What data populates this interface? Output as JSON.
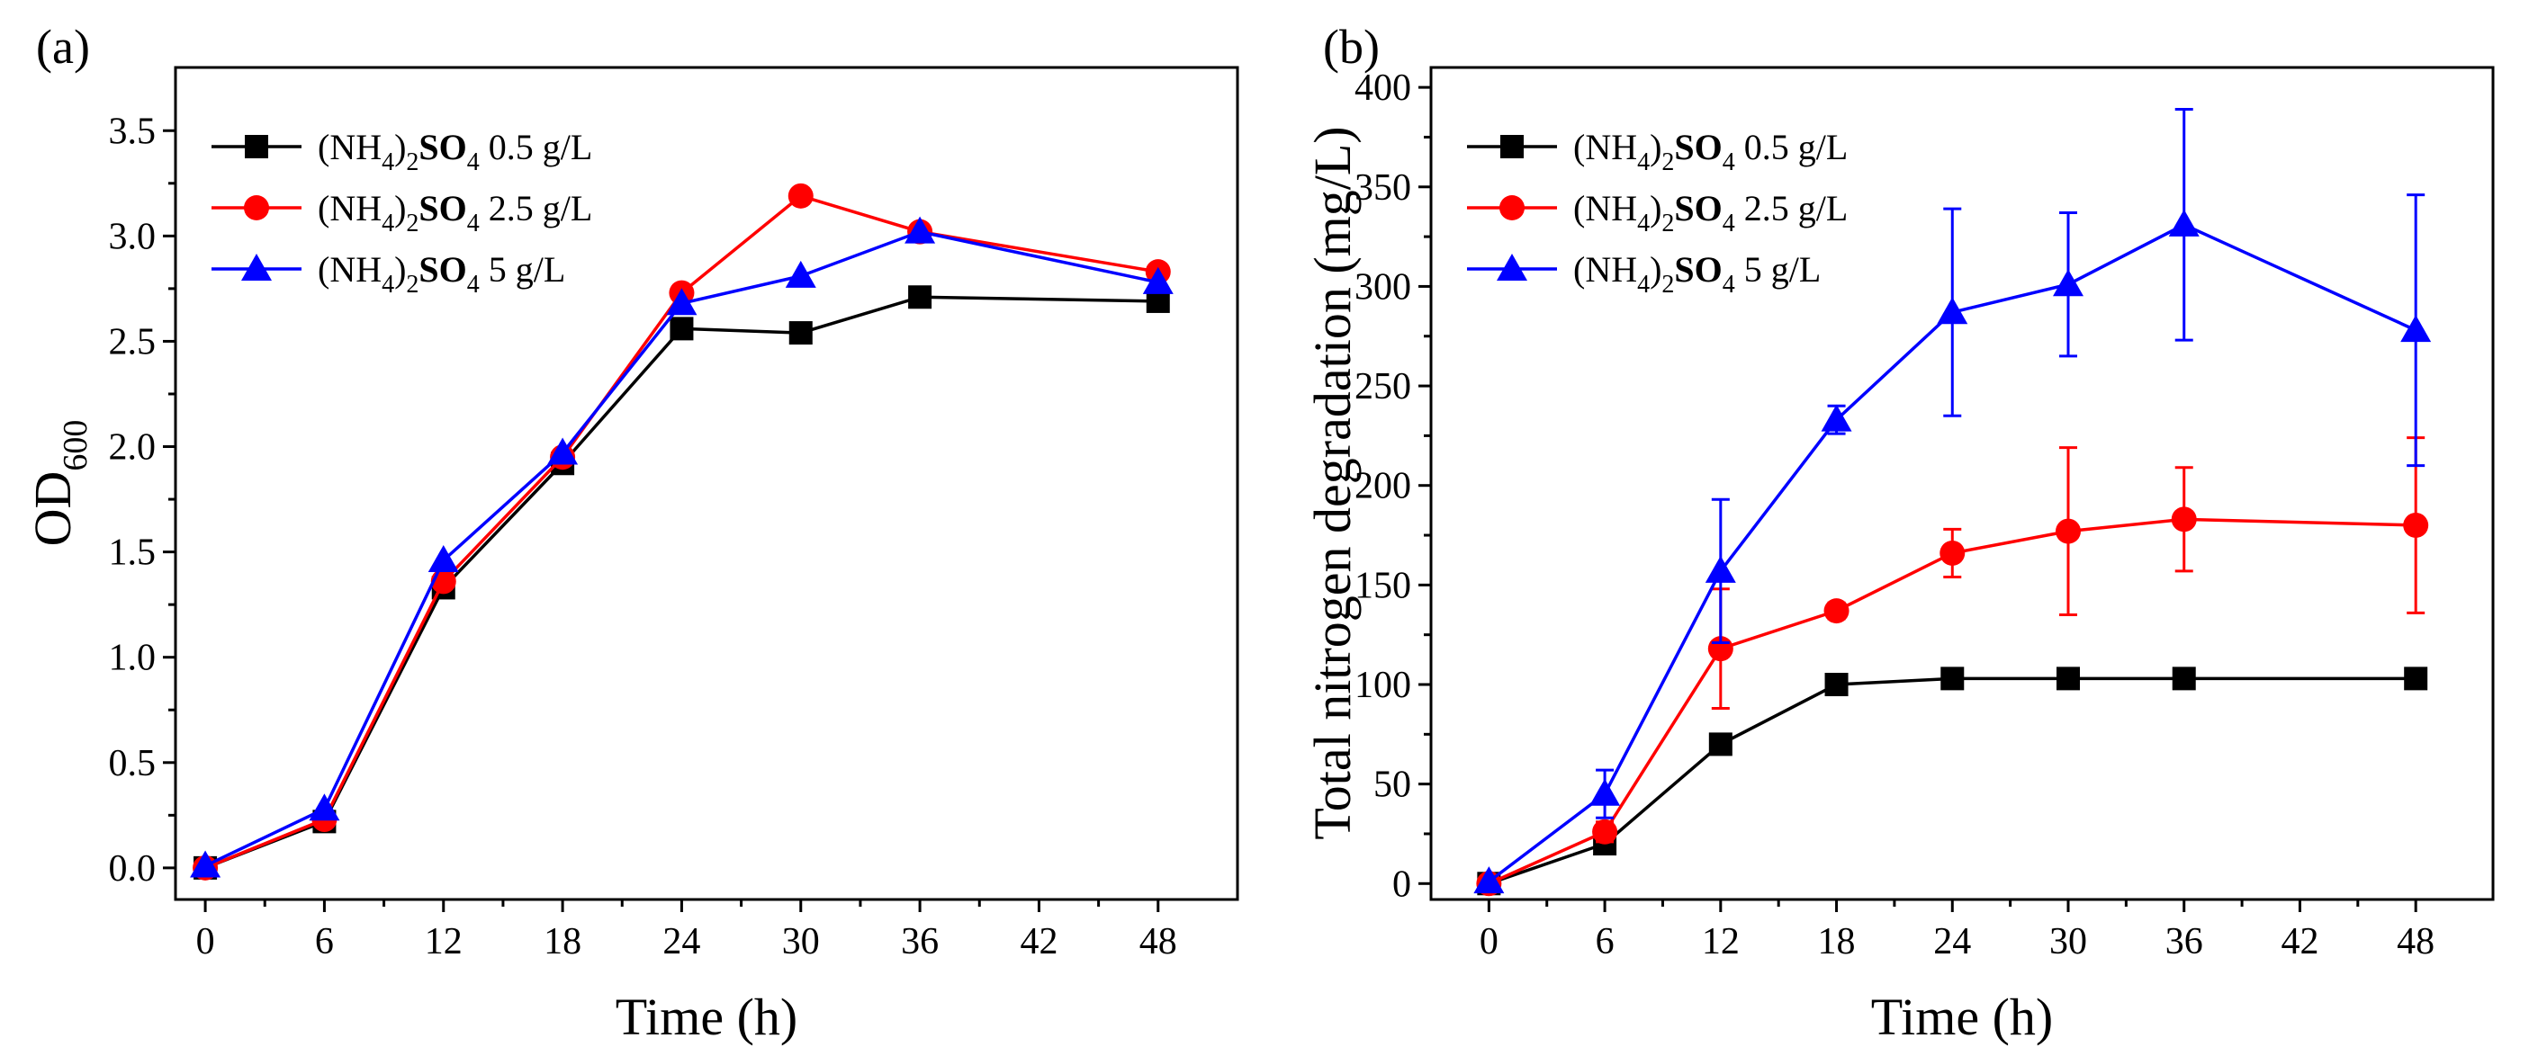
{
  "chart_data": [
    {
      "type": "line",
      "panel_label": "(a)",
      "xlabel": "Time (h)",
      "ylabel": {
        "main": "OD",
        "sub": "600"
      },
      "xlim": [
        -1.5,
        52
      ],
      "ylim": [
        -0.15,
        3.8
      ],
      "xticks": [
        0,
        6,
        12,
        18,
        24,
        30,
        36,
        42,
        48
      ],
      "yticks": [
        0.0,
        0.5,
        1.0,
        1.5,
        2.0,
        2.5,
        3.0,
        3.5
      ],
      "ytick_decimals": 1,
      "legend_position": "top-left",
      "series": [
        {
          "name": {
            "pre": "(NH",
            "sub1": "4",
            "mid": ")",
            "sub2": "2",
            "bold": "SO",
            "sub3": "4",
            "post": " 0.5 g/L"
          },
          "color": "#000000",
          "marker": "square",
          "x": [
            0,
            6,
            12,
            18,
            24,
            30,
            36,
            48
          ],
          "y": [
            0.0,
            0.22,
            1.33,
            1.92,
            2.56,
            2.54,
            2.71,
            2.69
          ]
        },
        {
          "name": {
            "pre": "(NH",
            "sub1": "4",
            "mid": ")",
            "sub2": "2",
            "bold": "SO",
            "sub3": "4",
            "post": " 2.5 g/L"
          },
          "color": "#ff0000",
          "marker": "circle",
          "x": [
            0,
            6,
            12,
            18,
            24,
            30,
            36,
            48
          ],
          "y": [
            0.0,
            0.23,
            1.36,
            1.95,
            2.73,
            3.19,
            3.02,
            2.83
          ]
        },
        {
          "name": {
            "pre": "(NH",
            "sub1": "4",
            "mid": ")",
            "sub2": "2",
            "bold": "SO",
            "sub3": "4",
            "post": " 5 g/L"
          },
          "color": "#0000ff",
          "marker": "triangle",
          "x": [
            0,
            6,
            12,
            18,
            24,
            30,
            36,
            48
          ],
          "y": [
            0.01,
            0.28,
            1.46,
            1.97,
            2.68,
            2.81,
            3.02,
            2.78
          ]
        }
      ]
    },
    {
      "type": "line",
      "panel_label": "(b)",
      "xlabel": "Time (h)",
      "ylabel": {
        "main": "Total nitrogen degradation (mg/L)",
        "sub": ""
      },
      "xlim": [
        -3,
        52
      ],
      "ylim": [
        -8,
        410
      ],
      "xticks": [
        0,
        6,
        12,
        18,
        24,
        30,
        36,
        42,
        48
      ],
      "yticks": [
        0,
        50,
        100,
        150,
        200,
        250,
        300,
        350,
        400
      ],
      "ytick_decimals": 0,
      "legend_position": "top-left",
      "series": [
        {
          "name": {
            "pre": "(NH",
            "sub1": "4",
            "mid": ")",
            "sub2": "2",
            "bold": "SO",
            "sub3": "4",
            "post": " 0.5 g/L"
          },
          "color": "#000000",
          "marker": "square",
          "x": [
            0,
            6,
            12,
            18,
            24,
            30,
            36,
            48
          ],
          "y": [
            0,
            20,
            70,
            100,
            103,
            103,
            103,
            103
          ],
          "err": [
            0,
            2,
            2,
            3,
            3,
            3,
            3,
            3
          ]
        },
        {
          "name": {
            "pre": "(NH",
            "sub1": "4",
            "mid": ")",
            "sub2": "2",
            "bold": "SO",
            "sub3": "4",
            "post": " 2.5 g/L"
          },
          "color": "#ff0000",
          "marker": "circle",
          "x": [
            0,
            6,
            12,
            18,
            24,
            30,
            36,
            48
          ],
          "y": [
            0,
            26,
            118,
            137,
            166,
            177,
            183,
            180
          ],
          "err": [
            0,
            5,
            30,
            4,
            12,
            42,
            26,
            44
          ]
        },
        {
          "name": {
            "pre": "(NH",
            "sub1": "4",
            "mid": ")",
            "sub2": "2",
            "bold": "SO",
            "sub3": "4",
            "post": " 5 g/L"
          },
          "color": "#0000ff",
          "marker": "triangle",
          "x": [
            0,
            6,
            12,
            18,
            24,
            30,
            36,
            48
          ],
          "y": [
            1,
            45,
            157,
            233,
            287,
            301,
            331,
            278
          ],
          "err": [
            0,
            12,
            36,
            7,
            52,
            36,
            58,
            68
          ]
        }
      ]
    }
  ]
}
